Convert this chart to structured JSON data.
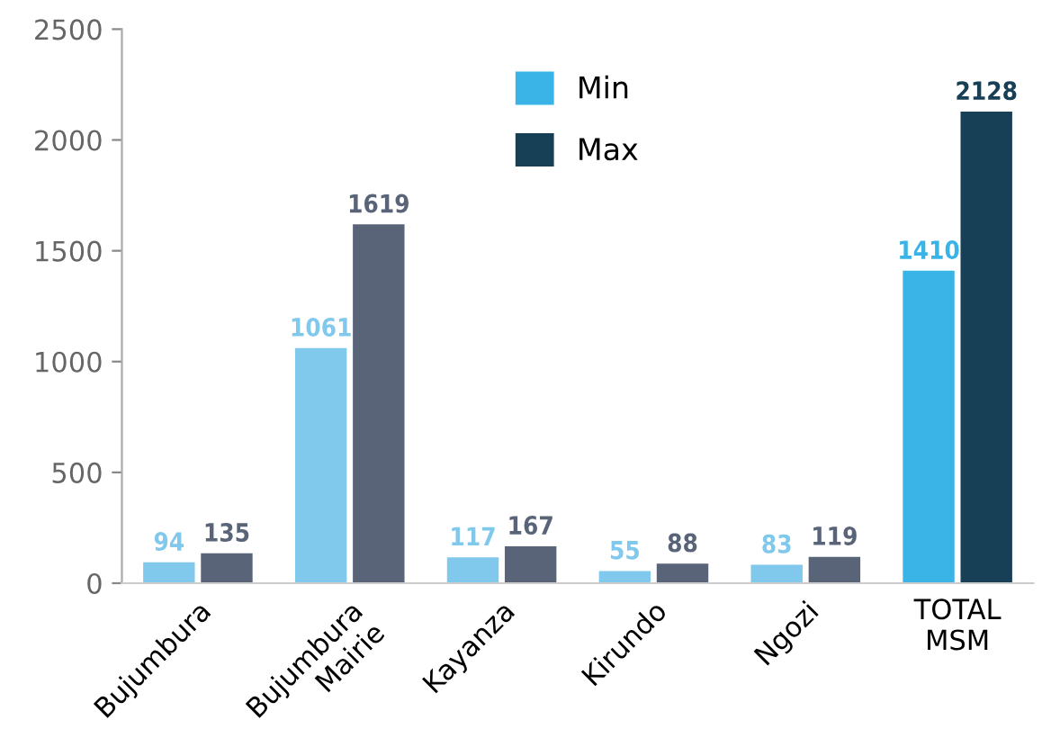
{
  "chart_data": {
    "type": "bar",
    "categories": [
      "Bujumbura",
      "Bujumbura\nMairie",
      "Kayanza",
      "Kirundo",
      "Ngozi",
      "TOTAL\nMSM"
    ],
    "series": [
      {
        "name": "Min",
        "color": "#3ab4e6",
        "colors": [
          "#80c8ec",
          "#80c8ec",
          "#80c8ec",
          "#80c8ec",
          "#80c8ec",
          "#3ab4e6"
        ],
        "values": [
          94,
          1061,
          117,
          55,
          83,
          1410
        ]
      },
      {
        "name": "Max",
        "color": "#173f55",
        "colors": [
          "#5a6479",
          "#5a6479",
          "#5a6479",
          "#5a6479",
          "#5a6479",
          "#173f55"
        ],
        "values": [
          135,
          1619,
          167,
          88,
          119,
          2128
        ]
      }
    ],
    "ylim": [
      0,
      2500
    ],
    "yticks": [
      0,
      500,
      1000,
      1500,
      2000,
      2500
    ],
    "data_labels": true,
    "grid": false,
    "legend": "top"
  }
}
